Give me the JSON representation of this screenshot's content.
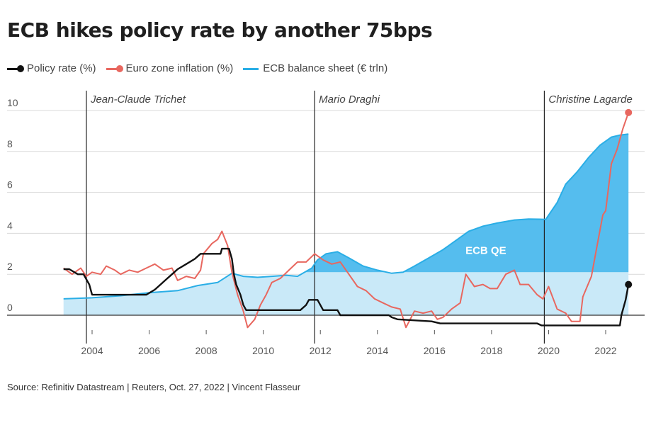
{
  "title": "ECB hikes policy rate by another 75bps",
  "legend": [
    {
      "label": "Policy rate (%)",
      "color": "#111111",
      "marker": "line-dot"
    },
    {
      "label": "Euro zone inflation (%)",
      "color": "#e8675f",
      "marker": "line-dot"
    },
    {
      "label": "ECB balance sheet (€ trln)",
      "color": "#2aaee6",
      "marker": "line"
    }
  ],
  "source": "Source: Refinitiv Datastream | Reuters, Oct. 27, 2022 | Vincent Flasseur",
  "colors": {
    "policy": "#111111",
    "inflation": "#e8675f",
    "balance_line": "#2aaee6",
    "balance_fill_light": "#c9e9f8",
    "balance_fill_dark": "#55bdee",
    "grid": "#d9d9d9",
    "text": "#555555"
  },
  "chart_data": {
    "type": "line",
    "title": "ECB hikes policy rate by another 75bps",
    "xlabel": "",
    "ylabel": "",
    "xlim": [
      2002.8,
      2023.2
    ],
    "ylim": [
      -1,
      10.5
    ],
    "x_ticks": [
      2004,
      2006,
      2008,
      2010,
      2012,
      2014,
      2016,
      2018,
      2020,
      2022
    ],
    "y_ticks": [
      0,
      2,
      4,
      6,
      8,
      10
    ],
    "grid": true,
    "annotations": [
      {
        "text": "Jean-Claude Trichet",
        "x": 2003.8
      },
      {
        "text": "Mario Draghi",
        "x": 2011.8
      },
      {
        "text": "Christine Lagarde",
        "x": 2019.85
      }
    ],
    "area_label": {
      "text": "ECB QE",
      "x": 2017.8,
      "y": 3.0
    },
    "qe_threshold": 2.1,
    "series": [
      {
        "name": "Policy rate (%)",
        "points": [
          [
            2003.0,
            2.25
          ],
          [
            2003.2,
            2.25
          ],
          [
            2003.5,
            2.0
          ],
          [
            2003.7,
            2.0
          ],
          [
            2003.9,
            1.5
          ],
          [
            2004.0,
            1.0
          ],
          [
            2005.9,
            1.0
          ],
          [
            2006.2,
            1.25
          ],
          [
            2006.4,
            1.5
          ],
          [
            2006.6,
            1.75
          ],
          [
            2006.8,
            2.0
          ],
          [
            2007.0,
            2.25
          ],
          [
            2007.3,
            2.5
          ],
          [
            2007.6,
            2.75
          ],
          [
            2007.8,
            3.0
          ],
          [
            2008.5,
            3.0
          ],
          [
            2008.55,
            3.25
          ],
          [
            2008.8,
            3.25
          ],
          [
            2008.9,
            2.75
          ],
          [
            2008.97,
            2.0
          ],
          [
            2009.05,
            1.5
          ],
          [
            2009.2,
            1.0
          ],
          [
            2009.3,
            0.5
          ],
          [
            2009.4,
            0.25
          ],
          [
            2011.3,
            0.25
          ],
          [
            2011.5,
            0.5
          ],
          [
            2011.6,
            0.75
          ],
          [
            2011.9,
            0.75
          ],
          [
            2012.0,
            0.5
          ],
          [
            2012.1,
            0.25
          ],
          [
            2012.6,
            0.25
          ],
          [
            2012.7,
            0.0
          ],
          [
            2014.4,
            0.0
          ],
          [
            2014.5,
            -0.1
          ],
          [
            2014.7,
            -0.2
          ],
          [
            2015.9,
            -0.3
          ],
          [
            2016.2,
            -0.4
          ],
          [
            2019.6,
            -0.4
          ],
          [
            2019.75,
            -0.5
          ],
          [
            2022.5,
            -0.5
          ],
          [
            2022.55,
            0.0
          ],
          [
            2022.7,
            0.75
          ],
          [
            2022.8,
            1.5
          ]
        ]
      },
      {
        "name": "Euro zone inflation (%)",
        "points": [
          [
            2003.0,
            2.3
          ],
          [
            2003.3,
            2.0
          ],
          [
            2003.6,
            2.3
          ],
          [
            2003.8,
            1.9
          ],
          [
            2004.0,
            2.1
          ],
          [
            2004.3,
            2.0
          ],
          [
            2004.5,
            2.4
          ],
          [
            2004.8,
            2.2
          ],
          [
            2005.0,
            2.0
          ],
          [
            2005.3,
            2.2
          ],
          [
            2005.6,
            2.1
          ],
          [
            2005.9,
            2.3
          ],
          [
            2006.2,
            2.5
          ],
          [
            2006.5,
            2.2
          ],
          [
            2006.8,
            2.3
          ],
          [
            2007.0,
            1.7
          ],
          [
            2007.3,
            1.9
          ],
          [
            2007.6,
            1.8
          ],
          [
            2007.8,
            2.2
          ],
          [
            2007.9,
            3.0
          ],
          [
            2008.2,
            3.5
          ],
          [
            2008.4,
            3.7
          ],
          [
            2008.55,
            4.1
          ],
          [
            2008.75,
            3.4
          ],
          [
            2008.9,
            2.1
          ],
          [
            2009.1,
            1.0
          ],
          [
            2009.3,
            0.2
          ],
          [
            2009.45,
            -0.6
          ],
          [
            2009.7,
            -0.2
          ],
          [
            2009.9,
            0.5
          ],
          [
            2010.1,
            1.0
          ],
          [
            2010.3,
            1.6
          ],
          [
            2010.6,
            1.8
          ],
          [
            2010.9,
            2.2
          ],
          [
            2011.2,
            2.6
          ],
          [
            2011.5,
            2.6
          ],
          [
            2011.8,
            3.0
          ],
          [
            2012.1,
            2.7
          ],
          [
            2012.4,
            2.5
          ],
          [
            2012.7,
            2.6
          ],
          [
            2013.0,
            2.0
          ],
          [
            2013.3,
            1.4
          ],
          [
            2013.6,
            1.2
          ],
          [
            2013.9,
            0.8
          ],
          [
            2014.2,
            0.6
          ],
          [
            2014.5,
            0.4
          ],
          [
            2014.8,
            0.3
          ],
          [
            2015.0,
            -0.6
          ],
          [
            2015.3,
            0.2
          ],
          [
            2015.6,
            0.1
          ],
          [
            2015.9,
            0.2
          ],
          [
            2016.1,
            -0.2
          ],
          [
            2016.3,
            -0.1
          ],
          [
            2016.6,
            0.3
          ],
          [
            2016.9,
            0.6
          ],
          [
            2017.1,
            2.0
          ],
          [
            2017.4,
            1.4
          ],
          [
            2017.7,
            1.5
          ],
          [
            2017.95,
            1.3
          ],
          [
            2018.2,
            1.3
          ],
          [
            2018.5,
            2.0
          ],
          [
            2018.8,
            2.2
          ],
          [
            2019.0,
            1.5
          ],
          [
            2019.3,
            1.5
          ],
          [
            2019.6,
            1.0
          ],
          [
            2019.8,
            0.8
          ],
          [
            2020.0,
            1.4
          ],
          [
            2020.3,
            0.3
          ],
          [
            2020.6,
            0.1
          ],
          [
            2020.8,
            -0.3
          ],
          [
            2021.1,
            -0.3
          ],
          [
            2021.2,
            0.9
          ],
          [
            2021.5,
            1.9
          ],
          [
            2021.7,
            3.4
          ],
          [
            2021.9,
            4.9
          ],
          [
            2022.0,
            5.1
          ],
          [
            2022.2,
            7.4
          ],
          [
            2022.4,
            8.1
          ],
          [
            2022.6,
            9.1
          ],
          [
            2022.8,
            9.9
          ]
        ]
      },
      {
        "name": "ECB balance sheet (€ trln)",
        "points": [
          [
            2003.0,
            0.8
          ],
          [
            2004.0,
            0.85
          ],
          [
            2005.0,
            0.95
          ],
          [
            2006.0,
            1.1
          ],
          [
            2007.0,
            1.2
          ],
          [
            2007.7,
            1.45
          ],
          [
            2008.4,
            1.6
          ],
          [
            2008.9,
            2.05
          ],
          [
            2009.3,
            1.9
          ],
          [
            2009.8,
            1.85
          ],
          [
            2010.3,
            1.9
          ],
          [
            2010.8,
            1.95
          ],
          [
            2011.2,
            1.9
          ],
          [
            2011.7,
            2.3
          ],
          [
            2011.9,
            2.7
          ],
          [
            2012.2,
            3.0
          ],
          [
            2012.6,
            3.1
          ],
          [
            2013.0,
            2.8
          ],
          [
            2013.5,
            2.4
          ],
          [
            2014.0,
            2.2
          ],
          [
            2014.5,
            2.05
          ],
          [
            2014.9,
            2.1
          ],
          [
            2015.3,
            2.4
          ],
          [
            2015.8,
            2.8
          ],
          [
            2016.3,
            3.2
          ],
          [
            2016.8,
            3.7
          ],
          [
            2017.2,
            4.1
          ],
          [
            2017.7,
            4.35
          ],
          [
            2018.2,
            4.5
          ],
          [
            2018.8,
            4.65
          ],
          [
            2019.3,
            4.7
          ],
          [
            2019.9,
            4.68
          ],
          [
            2020.3,
            5.5
          ],
          [
            2020.6,
            6.4
          ],
          [
            2021.0,
            7.0
          ],
          [
            2021.4,
            7.7
          ],
          [
            2021.8,
            8.3
          ],
          [
            2022.2,
            8.7
          ],
          [
            2022.5,
            8.8
          ],
          [
            2022.8,
            8.85
          ]
        ]
      }
    ]
  }
}
